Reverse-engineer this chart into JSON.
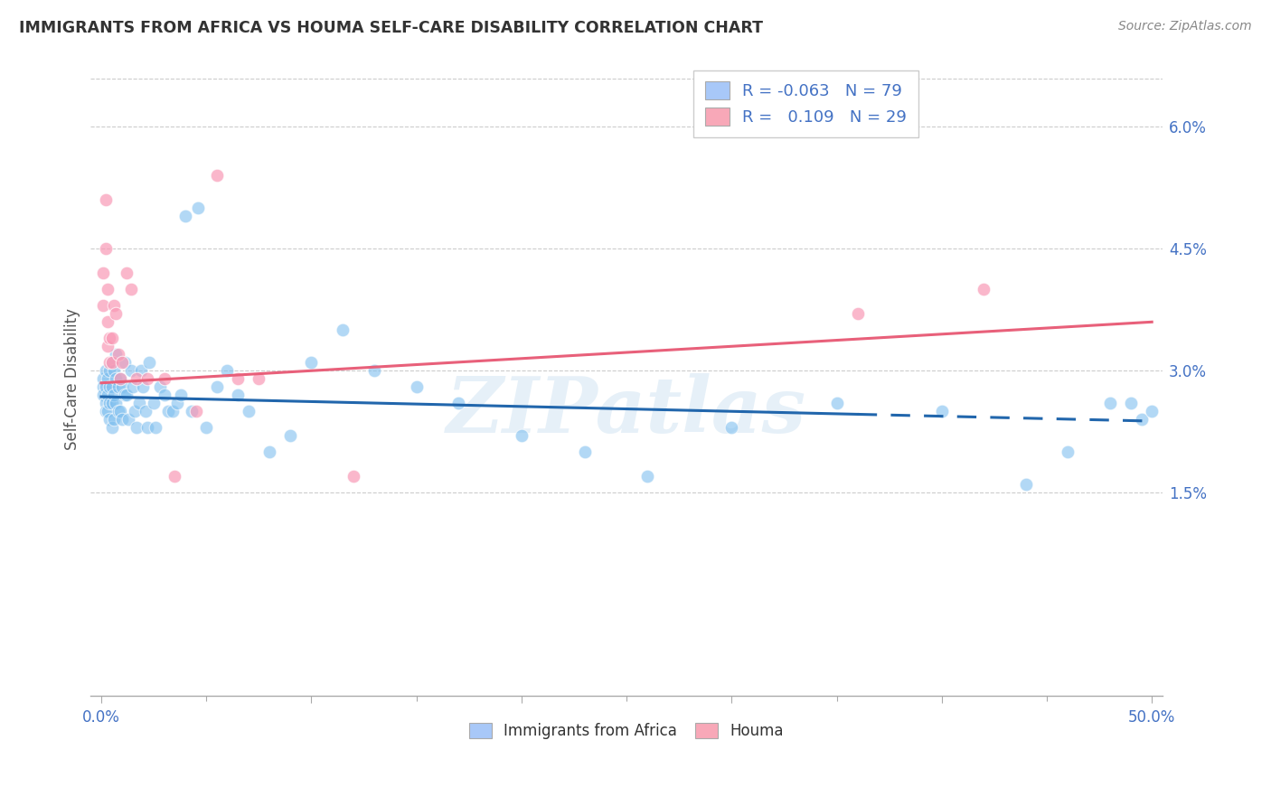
{
  "title": "IMMIGRANTS FROM AFRICA VS HOUMA SELF-CARE DISABILITY CORRELATION CHART",
  "source": "Source: ZipAtlas.com",
  "ylabel": "Self-Care Disability",
  "ylabel_right_ticks": [
    "6.0%",
    "4.5%",
    "3.0%",
    "1.5%"
  ],
  "ylabel_right_values": [
    0.06,
    0.045,
    0.03,
    0.015
  ],
  "xlim": [
    -0.005,
    0.505
  ],
  "ylim": [
    -0.01,
    0.068
  ],
  "blue_color": "#7fbfef",
  "pink_color": "#f999b5",
  "trend_blue_color": "#2166ac",
  "trend_pink_color": "#e8607a",
  "watermark": "ZIPatlas",
  "legend_r1": "-0.063",
  "legend_n1": "79",
  "legend_r2": "0.109",
  "legend_n2": "29",
  "blue_scatter_x": [
    0.001,
    0.001,
    0.001,
    0.002,
    0.002,
    0.002,
    0.002,
    0.003,
    0.003,
    0.003,
    0.004,
    0.004,
    0.004,
    0.004,
    0.005,
    0.005,
    0.005,
    0.005,
    0.006,
    0.006,
    0.006,
    0.007,
    0.007,
    0.007,
    0.008,
    0.008,
    0.009,
    0.009,
    0.01,
    0.01,
    0.011,
    0.011,
    0.012,
    0.013,
    0.014,
    0.015,
    0.016,
    0.017,
    0.018,
    0.019,
    0.02,
    0.021,
    0.022,
    0.023,
    0.025,
    0.026,
    0.028,
    0.03,
    0.032,
    0.034,
    0.036,
    0.038,
    0.04,
    0.043,
    0.046,
    0.05,
    0.055,
    0.06,
    0.065,
    0.07,
    0.08,
    0.09,
    0.1,
    0.115,
    0.13,
    0.15,
    0.17,
    0.2,
    0.23,
    0.26,
    0.3,
    0.35,
    0.4,
    0.44,
    0.46,
    0.48,
    0.49,
    0.495,
    0.5
  ],
  "blue_scatter_y": [
    0.029,
    0.028,
    0.027,
    0.03,
    0.028,
    0.026,
    0.025,
    0.029,
    0.027,
    0.025,
    0.03,
    0.028,
    0.026,
    0.024,
    0.031,
    0.028,
    0.026,
    0.023,
    0.03,
    0.027,
    0.024,
    0.032,
    0.029,
    0.026,
    0.028,
    0.025,
    0.029,
    0.025,
    0.028,
    0.024,
    0.031,
    0.027,
    0.027,
    0.024,
    0.03,
    0.028,
    0.025,
    0.023,
    0.026,
    0.03,
    0.028,
    0.025,
    0.023,
    0.031,
    0.026,
    0.023,
    0.028,
    0.027,
    0.025,
    0.025,
    0.026,
    0.027,
    0.049,
    0.025,
    0.05,
    0.023,
    0.028,
    0.03,
    0.027,
    0.025,
    0.02,
    0.022,
    0.031,
    0.035,
    0.03,
    0.028,
    0.026,
    0.022,
    0.02,
    0.017,
    0.023,
    0.026,
    0.025,
    0.016,
    0.02,
    0.026,
    0.026,
    0.024,
    0.025
  ],
  "pink_scatter_x": [
    0.001,
    0.001,
    0.002,
    0.002,
    0.003,
    0.003,
    0.003,
    0.004,
    0.004,
    0.005,
    0.005,
    0.006,
    0.007,
    0.008,
    0.009,
    0.01,
    0.012,
    0.014,
    0.017,
    0.022,
    0.03,
    0.035,
    0.045,
    0.055,
    0.065,
    0.075,
    0.12,
    0.36,
    0.42
  ],
  "pink_scatter_y": [
    0.042,
    0.038,
    0.051,
    0.045,
    0.04,
    0.036,
    0.033,
    0.034,
    0.031,
    0.034,
    0.031,
    0.038,
    0.037,
    0.032,
    0.029,
    0.031,
    0.042,
    0.04,
    0.029,
    0.029,
    0.029,
    0.017,
    0.025,
    0.054,
    0.029,
    0.029,
    0.017,
    0.037,
    0.04
  ],
  "blue_trend_start_x": 0.0,
  "blue_trend_start_y": 0.0268,
  "blue_trend_end_x": 0.5,
  "blue_trend_end_y": 0.0238,
  "blue_trend_solid_end": 0.36,
  "pink_trend_start_x": 0.0,
  "pink_trend_start_y": 0.0285,
  "pink_trend_end_x": 0.5,
  "pink_trend_end_y": 0.036,
  "x_tick_positions": [
    0.0,
    0.1,
    0.2,
    0.3,
    0.4,
    0.5
  ],
  "x_tick_minor_positions": [
    0.05,
    0.15,
    0.25,
    0.35,
    0.45
  ]
}
